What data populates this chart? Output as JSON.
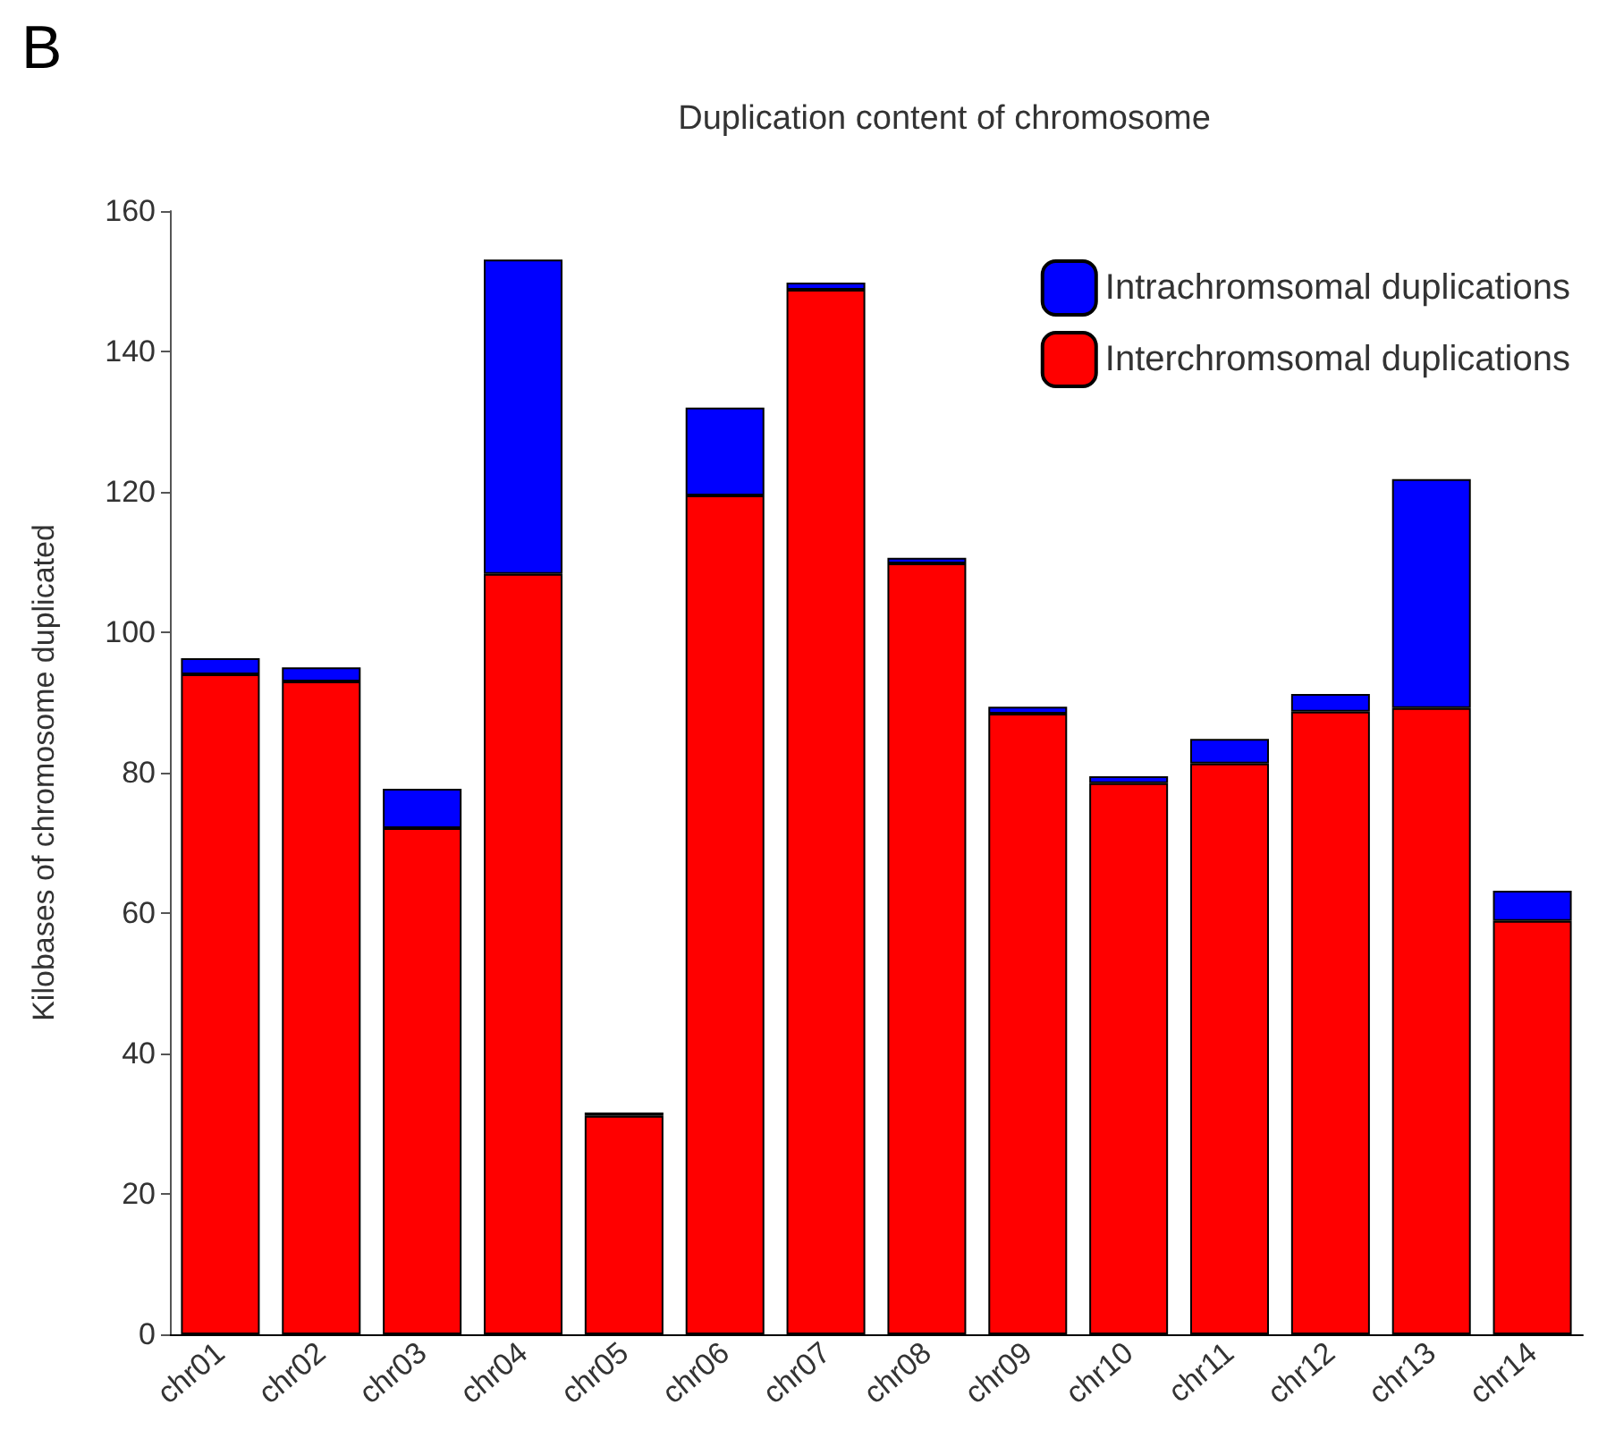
{
  "chart_data": {
    "type": "bar",
    "stacked": true,
    "title": "Duplication content of chromosome",
    "ylabel": "Kilobases of chromosome duplicated",
    "annotations": [
      "B"
    ],
    "categories": [
      "chr01",
      "chr02",
      "chr03",
      "chr04",
      "chr05",
      "chr06",
      "chr07",
      "chr08",
      "chr09",
      "chr10",
      "chr11",
      "chr12",
      "chr13",
      "chr14"
    ],
    "series": [
      {
        "name": "Interchromsomal duplications",
        "color": "#ff0000",
        "values": [
          94.0,
          93.0,
          72.1,
          108.3,
          31.1,
          119.5,
          148.8,
          109.8,
          88.4,
          78.5,
          81.3,
          88.7,
          89.2,
          58.9
        ]
      },
      {
        "name": "Intrachromsomal duplications",
        "color": "#0000ff",
        "values": [
          2.3,
          2.0,
          5.6,
          44.8,
          0.5,
          12.5,
          1.0,
          0.8,
          1.0,
          1.0,
          3.5,
          2.5,
          32.6,
          4.3
        ]
      }
    ],
    "ylim": [
      0,
      160
    ],
    "yticks": [
      0,
      20,
      40,
      60,
      80,
      100,
      120,
      140,
      160
    ],
    "grid": false,
    "legend": "top right"
  }
}
